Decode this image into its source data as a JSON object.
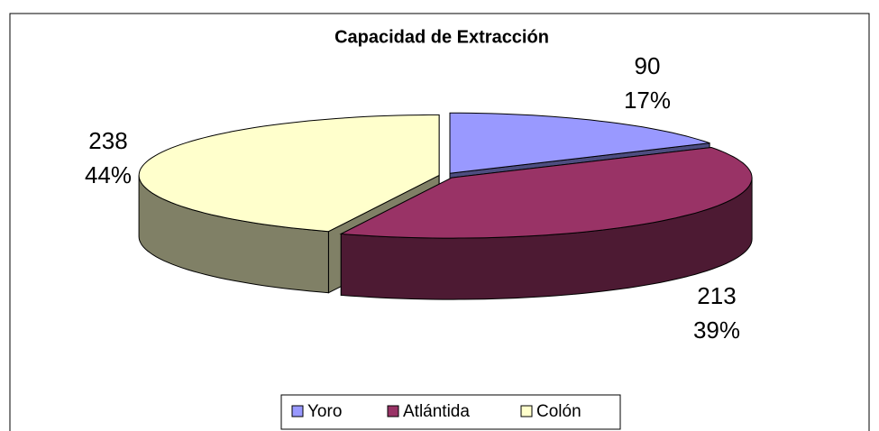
{
  "chart_data": {
    "type": "pie",
    "title": "Capacidad de Extracción",
    "categories": [
      "Yoro",
      "Atlántida",
      "Colón"
    ],
    "values": [
      90,
      213,
      238
    ],
    "percent_labels": [
      "17%",
      "39%",
      "44%"
    ],
    "colors": [
      "#9999ff",
      "#993366",
      "#ffffcc"
    ],
    "legend": "bottom"
  }
}
